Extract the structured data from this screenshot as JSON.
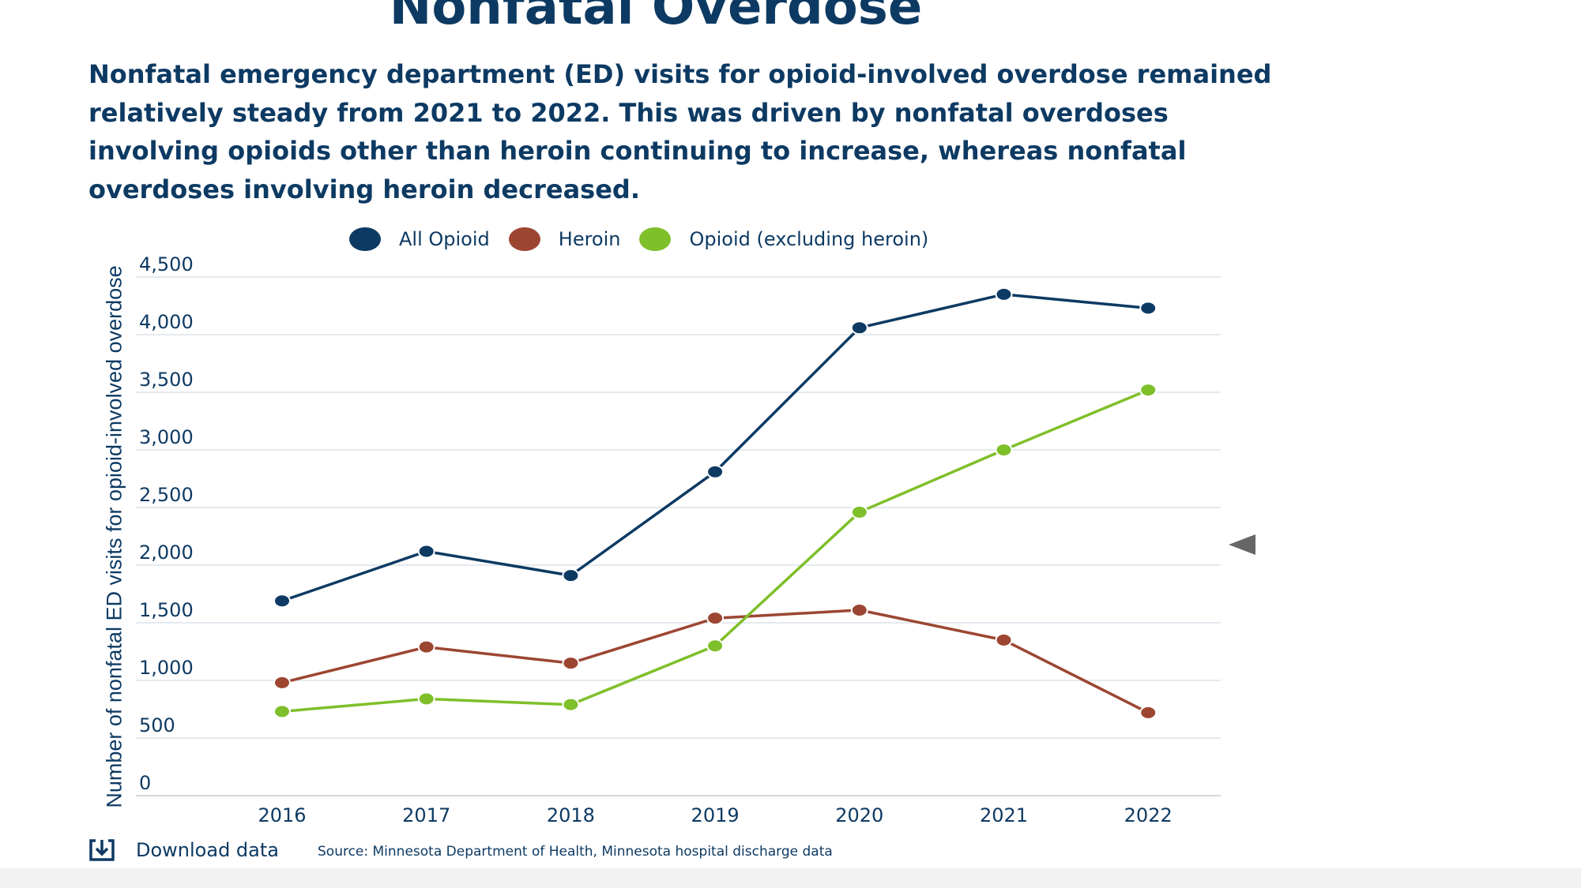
{
  "header": {
    "title": "Nonfatal Overdose",
    "subtitle": "Nonfatal emergency department (ED) visits for opioid-involved overdose remained relatively steady from 2021 to 2022. This was driven by nonfatal overdoses involving opioids other than heroin continuing to increase, whereas nonfatal overdoses involving heroin decreased."
  },
  "legend": {
    "items": [
      {
        "label": "All Opioid",
        "color": "#0d3a63"
      },
      {
        "label": "Heroin",
        "color": "#9c4632"
      },
      {
        "label": "Opioid (excluding heroin)",
        "color": "#7fbf2a"
      }
    ]
  },
  "footer": {
    "download_label": "Download data",
    "download_icon": "download-icon",
    "source": "Source: Minnesota Department of Health, Minnesota hospital discharge data"
  },
  "nav": {
    "arrow_icon": "triangle-left-icon"
  },
  "chart_data": {
    "type": "line",
    "title": "Nonfatal Overdose",
    "xlabel": "",
    "ylabel": "Number of nonfatal ED visits for opioid-involved overdose",
    "x": [
      "2016",
      "2017",
      "2018",
      "2019",
      "2020",
      "2021",
      "2022"
    ],
    "ylim": [
      0,
      4500
    ],
    "y_ticks": [
      0,
      500,
      1000,
      1500,
      2000,
      2500,
      3000,
      3500,
      4000,
      4500
    ],
    "y_tick_labels": [
      "0",
      "500",
      "1,000",
      "1,500",
      "2,000",
      "2,500",
      "3,000",
      "3,500",
      "4,000",
      "4,500"
    ],
    "grid": true,
    "legend_position": "top",
    "series": [
      {
        "name": "All Opioid",
        "color": "#0d3a63",
        "values": [
          1690,
          2120,
          1910,
          2810,
          4060,
          4350,
          4230
        ]
      },
      {
        "name": "Heroin",
        "color": "#9c4632",
        "values": [
          980,
          1290,
          1150,
          1540,
          1610,
          1350,
          720
        ]
      },
      {
        "name": "Opioid (excluding heroin)",
        "color": "#7fbf2a",
        "values": [
          730,
          840,
          790,
          1300,
          2460,
          3000,
          3520
        ]
      }
    ]
  }
}
